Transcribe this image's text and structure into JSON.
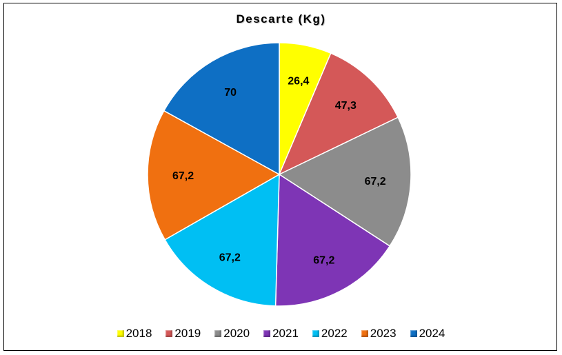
{
  "chart_data": {
    "type": "pie",
    "title": "Descarte (Kg)",
    "categories": [
      "2018",
      "2019",
      "2020",
      "2021",
      "2022",
      "2023",
      "2024"
    ],
    "values": [
      26.4,
      47.3,
      67.2,
      67.2,
      67.2,
      67.2,
      70
    ],
    "value_labels": [
      "26,4",
      "47,3",
      "67,2",
      "67,2",
      "67,2",
      "67,2",
      "70"
    ],
    "colors": [
      "#FFFF00",
      "#D45858",
      "#8C8C8C",
      "#7E35B5",
      "#00BFF3",
      "#F07010",
      "#0E6FC4"
    ],
    "legend_position": "bottom",
    "start_angle": "top, clockwise"
  }
}
